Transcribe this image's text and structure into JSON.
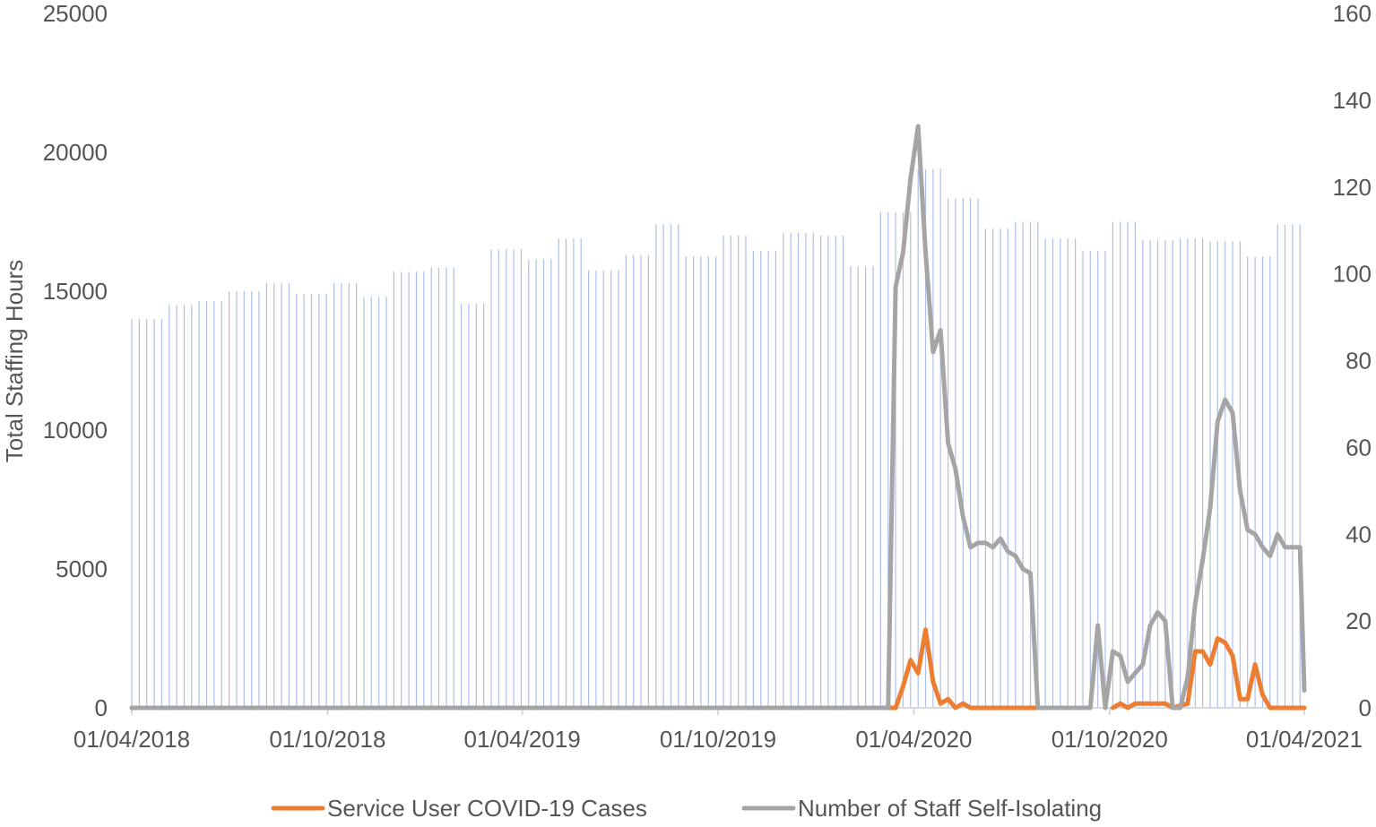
{
  "chart_data": {
    "type": "bar+line",
    "title": "",
    "ylabel_left": "Total Staffing Hours",
    "ylabel_right": "",
    "ylim_left": [
      0,
      25000
    ],
    "ylim_right": [
      0,
      160
    ],
    "yticks_left": [
      "0",
      "5000",
      "10000",
      "15000",
      "20000",
      "25000"
    ],
    "yticks_right": [
      "0",
      "20",
      "40",
      "60",
      "80",
      "100",
      "120",
      "140",
      "160"
    ],
    "x_range": [
      "2018-04-01",
      "2021-04-01"
    ],
    "xticks": [
      {
        "date": "2018-04-01",
        "label": "01/04/2018"
      },
      {
        "date": "2018-10-01",
        "label": "01/10/2018"
      },
      {
        "date": "2019-04-01",
        "label": "01/04/2019"
      },
      {
        "date": "2019-10-01",
        "label": "01/10/2019"
      },
      {
        "date": "2020-04-01",
        "label": "01/04/2020"
      },
      {
        "date": "2020-10-01",
        "label": "01/10/2020"
      },
      {
        "date": "2021-04-01",
        "label": "01/04/2021"
      }
    ],
    "bar_color": "#aebfe8",
    "bars": {
      "name": "Total Staffing Hours",
      "monthly": [
        {
          "month": "2018-04",
          "value": 14000
        },
        {
          "month": "2018-05",
          "value": 14500
        },
        {
          "month": "2018-06",
          "value": 14650
        },
        {
          "month": "2018-07",
          "value": 15000
        },
        {
          "month": "2018-08",
          "value": 15300
        },
        {
          "month": "2018-09",
          "value": 14900
        },
        {
          "month": "2018-10",
          "value": 15300
        },
        {
          "month": "2018-11",
          "value": 14800
        },
        {
          "month": "2018-12",
          "value": 15700
        },
        {
          "month": "2019-01",
          "value": 15850
        },
        {
          "month": "2019-02",
          "value": 14550
        },
        {
          "month": "2019-03",
          "value": 16500
        },
        {
          "month": "2019-04",
          "value": 16150
        },
        {
          "month": "2019-05",
          "value": 16900
        },
        {
          "month": "2019-06",
          "value": 15750
        },
        {
          "month": "2019-07",
          "value": 16300
        },
        {
          "month": "2019-08",
          "value": 17400
        },
        {
          "month": "2019-09",
          "value": 16250
        },
        {
          "month": "2019-10",
          "value": 17000
        },
        {
          "month": "2019-11",
          "value": 16450
        },
        {
          "month": "2019-12",
          "value": 17100
        },
        {
          "month": "2020-01",
          "value": 17000
        },
        {
          "month": "2020-02",
          "value": 15900
        },
        {
          "month": "2020-03",
          "value": 17850
        },
        {
          "month": "2020-04",
          "value": 19400
        },
        {
          "month": "2020-05",
          "value": 18350
        },
        {
          "month": "2020-06",
          "value": 17250
        },
        {
          "month": "2020-07",
          "value": 17500
        },
        {
          "month": "2020-08",
          "value": 16900
        },
        {
          "month": "2020-09",
          "value": 16450
        },
        {
          "month": "2020-10",
          "value": 17500
        },
        {
          "month": "2020-11",
          "value": 16850
        },
        {
          "month": "2020-12",
          "value": 16900
        },
        {
          "month": "2021-01",
          "value": 16800
        },
        {
          "month": "2021-02",
          "value": 16250
        },
        {
          "month": "2021-03",
          "value": 17400
        }
      ]
    },
    "series": [
      {
        "name": "Service User COVID-19 Cases",
        "axis": "right",
        "color": "#ed7d31",
        "points": [
          [
            "2018-04-01",
            0
          ],
          [
            "2020-03-15",
            0
          ],
          [
            "2020-03-22",
            5
          ],
          [
            "2020-03-29",
            11
          ],
          [
            "2020-04-05",
            8
          ],
          [
            "2020-04-12",
            18
          ],
          [
            "2020-04-19",
            6
          ],
          [
            "2020-04-26",
            1
          ],
          [
            "2020-05-03",
            2
          ],
          [
            "2020-05-10",
            0
          ],
          [
            "2020-05-17",
            1
          ],
          [
            "2020-05-24",
            0
          ],
          [
            "2020-08-16",
            0
          ],
          [
            "2020-09-27",
            null
          ],
          [
            "2020-10-04",
            0
          ],
          [
            "2020-10-11",
            1
          ],
          [
            "2020-10-18",
            0
          ],
          [
            "2020-10-25",
            1
          ],
          [
            "2020-11-22",
            1
          ],
          [
            "2020-11-29",
            0
          ],
          [
            "2020-12-13",
            1
          ],
          [
            "2020-12-20",
            13
          ],
          [
            "2020-12-27",
            13
          ],
          [
            "2021-01-03",
            10
          ],
          [
            "2021-01-10",
            16
          ],
          [
            "2021-01-17",
            15
          ],
          [
            "2021-01-24",
            12
          ],
          [
            "2021-01-31",
            2
          ],
          [
            "2021-02-07",
            2
          ],
          [
            "2021-02-14",
            10
          ],
          [
            "2021-02-21",
            3
          ],
          [
            "2021-02-28",
            0
          ],
          [
            "2021-04-01",
            0
          ]
        ]
      },
      {
        "name": "Number of Staff Self-Isolating",
        "axis": "right",
        "color": "#a5a5a5",
        "points": [
          [
            "2018-04-01",
            0
          ],
          [
            "2020-03-08",
            0
          ],
          [
            "2020-03-15",
            97
          ],
          [
            "2020-03-22",
            105
          ],
          [
            "2020-03-29",
            122
          ],
          [
            "2020-04-05",
            134
          ],
          [
            "2020-04-12",
            105
          ],
          [
            "2020-04-19",
            82
          ],
          [
            "2020-04-26",
            87
          ],
          [
            "2020-05-03",
            61
          ],
          [
            "2020-05-10",
            55
          ],
          [
            "2020-05-17",
            44
          ],
          [
            "2020-05-24",
            37
          ],
          [
            "2020-05-31",
            38
          ],
          [
            "2020-06-07",
            38
          ],
          [
            "2020-06-14",
            37
          ],
          [
            "2020-06-21",
            39
          ],
          [
            "2020-06-28",
            36
          ],
          [
            "2020-07-05",
            35
          ],
          [
            "2020-07-12",
            32
          ],
          [
            "2020-07-19",
            31
          ],
          [
            "2020-07-26",
            0
          ],
          [
            "2020-09-13",
            0
          ],
          [
            "2020-09-20",
            19
          ],
          [
            "2020-09-27",
            0
          ],
          [
            "2020-10-04",
            13
          ],
          [
            "2020-10-11",
            12
          ],
          [
            "2020-10-18",
            6
          ],
          [
            "2020-10-25",
            8
          ],
          [
            "2020-11-01",
            10
          ],
          [
            "2020-11-08",
            19
          ],
          [
            "2020-11-15",
            22
          ],
          [
            "2020-11-22",
            20
          ],
          [
            "2020-11-29",
            0
          ],
          [
            "2020-12-06",
            0
          ],
          [
            "2020-12-13",
            7
          ],
          [
            "2020-12-20",
            24
          ],
          [
            "2020-12-27",
            34
          ],
          [
            "2021-01-03",
            46
          ],
          [
            "2021-01-10",
            66
          ],
          [
            "2021-01-17",
            71
          ],
          [
            "2021-01-24",
            68
          ],
          [
            "2021-01-31",
            50
          ],
          [
            "2021-02-07",
            41
          ],
          [
            "2021-02-14",
            40
          ],
          [
            "2021-02-21",
            37
          ],
          [
            "2021-02-28",
            35
          ],
          [
            "2021-03-07",
            40
          ],
          [
            "2021-03-14",
            37
          ],
          [
            "2021-03-21",
            37
          ],
          [
            "2021-03-28",
            37
          ],
          [
            "2021-04-01",
            4
          ]
        ]
      }
    ],
    "legend": {
      "position": "bottom",
      "items": [
        "Service User COVID-19 Cases",
        "Number of Staff Self-Isolating"
      ]
    },
    "grid": false
  }
}
